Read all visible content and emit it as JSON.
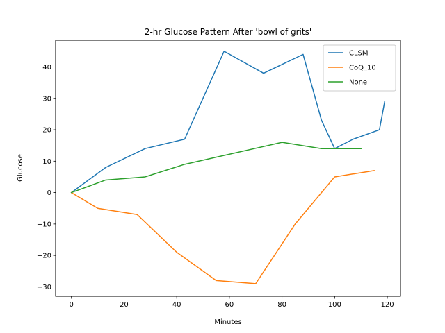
{
  "chart_data": {
    "type": "line",
    "title": "2-hr Glucose Pattern After 'bowl of grits'",
    "xlabel": "Minutes",
    "ylabel": "Glucose",
    "xlim": [
      -6,
      125
    ],
    "ylim": [
      -33,
      48.5
    ],
    "xticks": [
      0,
      20,
      40,
      60,
      80,
      100,
      120
    ],
    "yticks": [
      -30,
      -20,
      -10,
      0,
      10,
      20,
      30,
      40
    ],
    "grid": false,
    "legend_position": "top-right",
    "series": [
      {
        "name": "CLSM",
        "color": "#1f77b4",
        "x": [
          0,
          13,
          28,
          43,
          58,
          73,
          88,
          95,
          100,
          107,
          117,
          119
        ],
        "y": [
          0,
          8,
          14,
          17,
          45,
          38,
          44,
          23,
          14,
          17,
          20,
          29
        ]
      },
      {
        "name": "CoQ_10",
        "color": "#ff7f0e",
        "x": [
          0,
          10,
          25,
          40,
          55,
          70,
          85,
          100,
          115
        ],
        "y": [
          0,
          -5,
          -7,
          -19,
          -28,
          -29,
          -10,
          5,
          7
        ]
      },
      {
        "name": "None",
        "color": "#2ca02c",
        "x": [
          0,
          13,
          28,
          43,
          80,
          95,
          110
        ],
        "y": [
          0,
          4,
          5,
          9,
          16,
          14,
          14
        ]
      }
    ]
  }
}
